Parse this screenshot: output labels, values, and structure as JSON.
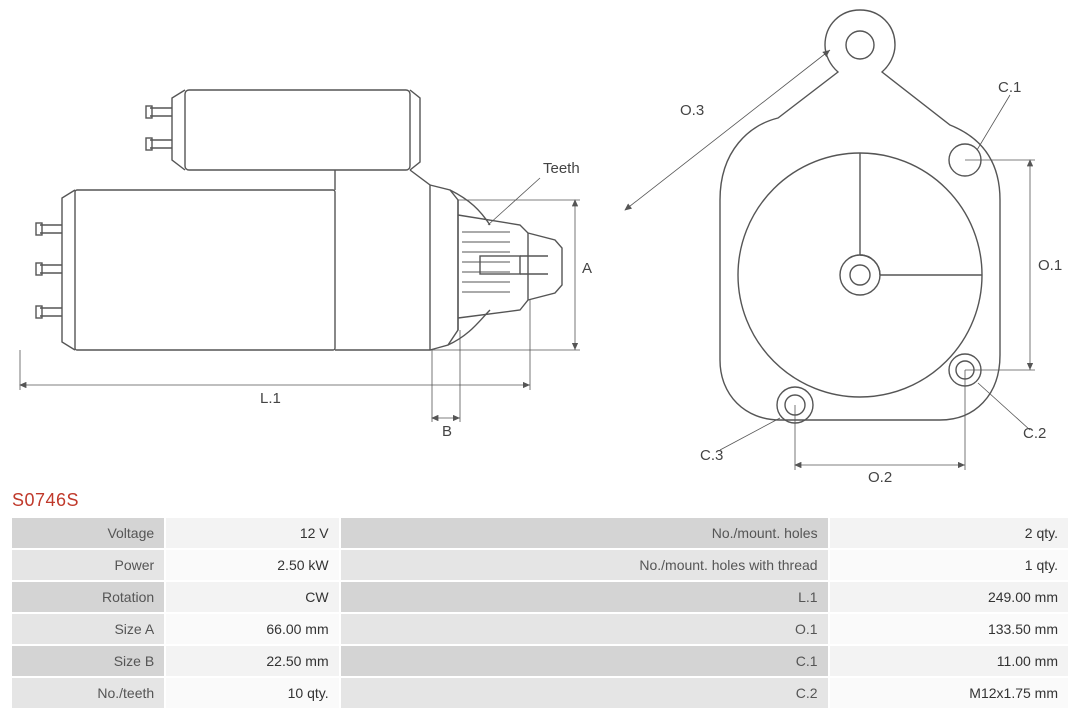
{
  "part_number": "S0746S",
  "colors": {
    "part_title": "#c0392b",
    "line": "#555555",
    "line_thin": "#666666",
    "label_bg": "#d4d4d4",
    "label_bg_alt": "#e5e5e5",
    "value_bg": "#f3f3f3",
    "value_bg_alt": "#fafafa",
    "text": "#444444",
    "background": "#ffffff"
  },
  "diagram_labels": {
    "teeth": "Teeth",
    "A": "A",
    "B": "B",
    "L1": "L.1",
    "O1": "O.1",
    "O2": "O.2",
    "O3": "O.3",
    "C1": "C.1",
    "C2": "C.2",
    "C3": "C.3"
  },
  "specs_left": [
    {
      "label": "Voltage",
      "value": "12 V"
    },
    {
      "label": "Power",
      "value": "2.50 kW"
    },
    {
      "label": "Rotation",
      "value": "CW"
    },
    {
      "label": "Size A",
      "value": "66.00 mm"
    },
    {
      "label": "Size B",
      "value": "22.50 mm"
    },
    {
      "label": "No./teeth",
      "value": "10 qty."
    }
  ],
  "specs_right": [
    {
      "label": "No./mount. holes",
      "value": "2 qty."
    },
    {
      "label": "No./mount. holes with thread",
      "value": "1 qty."
    },
    {
      "label": "L.1",
      "value": "249.00 mm"
    },
    {
      "label": "O.1",
      "value": "133.50 mm"
    },
    {
      "label": "C.1",
      "value": "11.00 mm"
    },
    {
      "label": "C.2",
      "value": "M12x1.75 mm"
    }
  ],
  "style": {
    "title_fontsize": 18,
    "label_fontsize": 15,
    "table_fontsize": 14,
    "line_width_main": 1.4,
    "line_width_dim": 0.8
  }
}
